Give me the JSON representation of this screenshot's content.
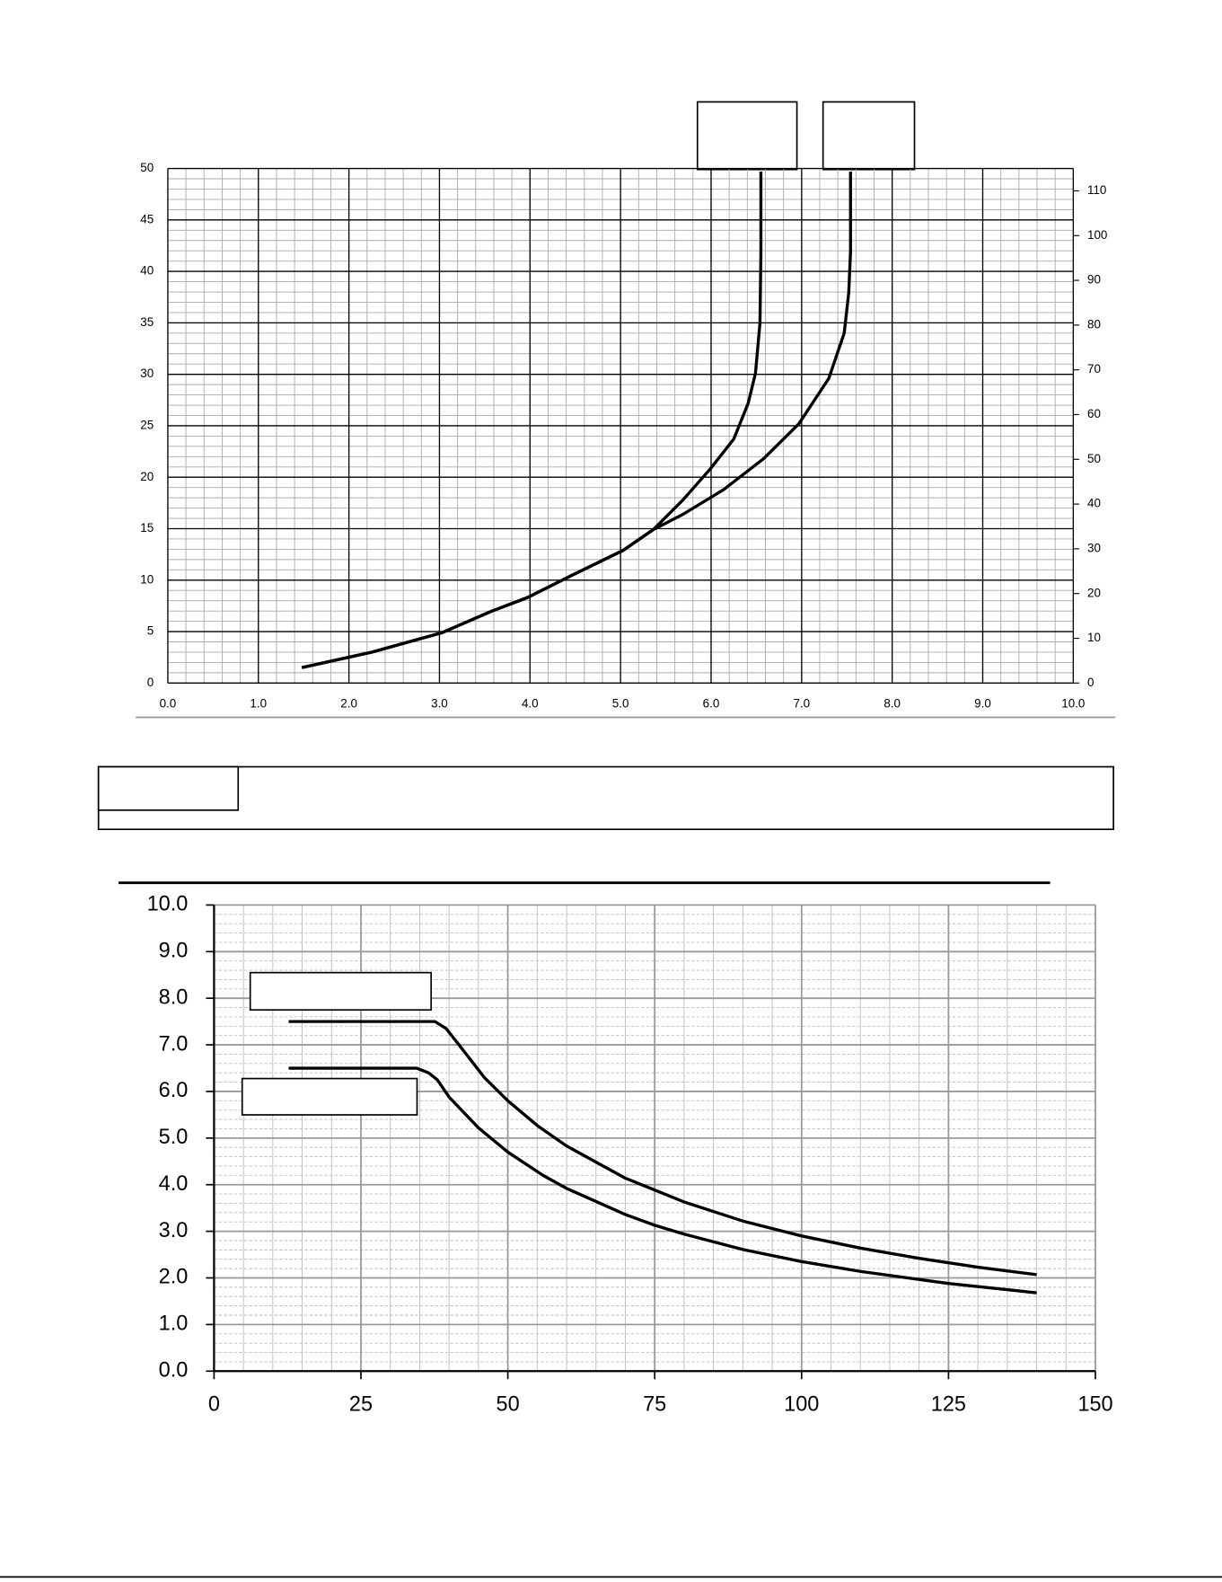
{
  "chart_data": [
    {
      "type": "line",
      "xlim": [
        0,
        10
      ],
      "xticks": [
        {
          "value": 0,
          "label": "0.0"
        },
        {
          "value": 1,
          "label": "1.0"
        },
        {
          "value": 2,
          "label": "2.0"
        },
        {
          "value": 3,
          "label": "3.0"
        },
        {
          "value": 4,
          "label": "4.0"
        },
        {
          "value": 5,
          "label": "5.0"
        },
        {
          "value": 6,
          "label": "6.0"
        },
        {
          "value": 7,
          "label": "7.0"
        },
        {
          "value": 8,
          "label": "8.0"
        },
        {
          "value": 9,
          "label": "9.0"
        },
        {
          "value": 10,
          "label": "10.0"
        }
      ],
      "ylim": [
        0,
        50
      ],
      "yticks": [
        0,
        5,
        10,
        15,
        20,
        25,
        30,
        35,
        40,
        45,
        50
      ],
      "y2lim": [
        0,
        115
      ],
      "y2ticks": [
        0,
        10,
        20,
        30,
        40,
        50,
        60,
        70,
        80,
        90,
        100,
        110
      ],
      "grid": true,
      "series": [
        {
          "color": "#000000",
          "x": [
            1.48,
            2.25,
            3.03,
            3.58,
            3.97,
            4.47,
            5.03,
            5.36,
            5.69,
            5.99,
            6.25,
            6.41,
            6.49,
            6.54,
            6.55,
            6.55
          ],
          "values": [
            1.5,
            3.0,
            4.9,
            7.0,
            8.3,
            10.5,
            12.9,
            14.9,
            17.8,
            20.8,
            23.7,
            27.2,
            30.1,
            35.0,
            41.9,
            49.7
          ]
        },
        {
          "color": "#000000",
          "x": [
            1.48,
            2.25,
            3.03,
            3.58,
            3.97,
            4.47,
            5.03,
            5.36,
            5.69,
            6.14,
            6.58,
            6.97,
            7.3,
            7.47,
            7.52,
            7.54,
            7.54
          ],
          "values": [
            1.5,
            3.0,
            4.9,
            7.0,
            8.3,
            10.5,
            12.9,
            14.9,
            16.4,
            18.8,
            21.8,
            25.2,
            29.6,
            34.0,
            37.9,
            41.9,
            49.7
          ]
        }
      ]
    },
    {
      "type": "line",
      "xlim": [
        0,
        150
      ],
      "xticks": [
        0,
        25,
        50,
        75,
        100,
        125,
        150
      ],
      "ylim": [
        0,
        10
      ],
      "yticks": [
        {
          "value": 0,
          "label": "0.0"
        },
        {
          "value": 1,
          "label": "1.0"
        },
        {
          "value": 2,
          "label": "2.0"
        },
        {
          "value": 3,
          "label": "3.0"
        },
        {
          "value": 4,
          "label": "4.0"
        },
        {
          "value": 5,
          "label": "5.0"
        },
        {
          "value": 6,
          "label": "6.0"
        },
        {
          "value": 7,
          "label": "7.0"
        },
        {
          "value": 8,
          "label": "8.0"
        },
        {
          "value": 9,
          "label": "9.0"
        },
        {
          "value": 10,
          "label": "10.0"
        }
      ],
      "grid": true,
      "series": [
        {
          "color": "#000000",
          "x": [
            12.7,
            37.6,
            39.5,
            42,
            46,
            50,
            55,
            60,
            70,
            80,
            90,
            100,
            110,
            120,
            130,
            140
          ],
          "values": [
            7.5,
            7.5,
            7.35,
            6.95,
            6.3,
            5.8,
            5.27,
            4.83,
            4.14,
            3.63,
            3.22,
            2.9,
            2.64,
            2.42,
            2.23,
            2.07
          ]
        },
        {
          "color": "#000000",
          "x": [
            12.7,
            34.5,
            36.5,
            38,
            40,
            45,
            50,
            56,
            60,
            70,
            75,
            80,
            90,
            100,
            110,
            125,
            140
          ],
          "values": [
            6.5,
            6.5,
            6.4,
            6.25,
            5.88,
            5.22,
            4.7,
            4.2,
            3.92,
            3.36,
            3.13,
            2.94,
            2.61,
            2.35,
            2.14,
            1.88,
            1.68
          ]
        }
      ]
    }
  ]
}
